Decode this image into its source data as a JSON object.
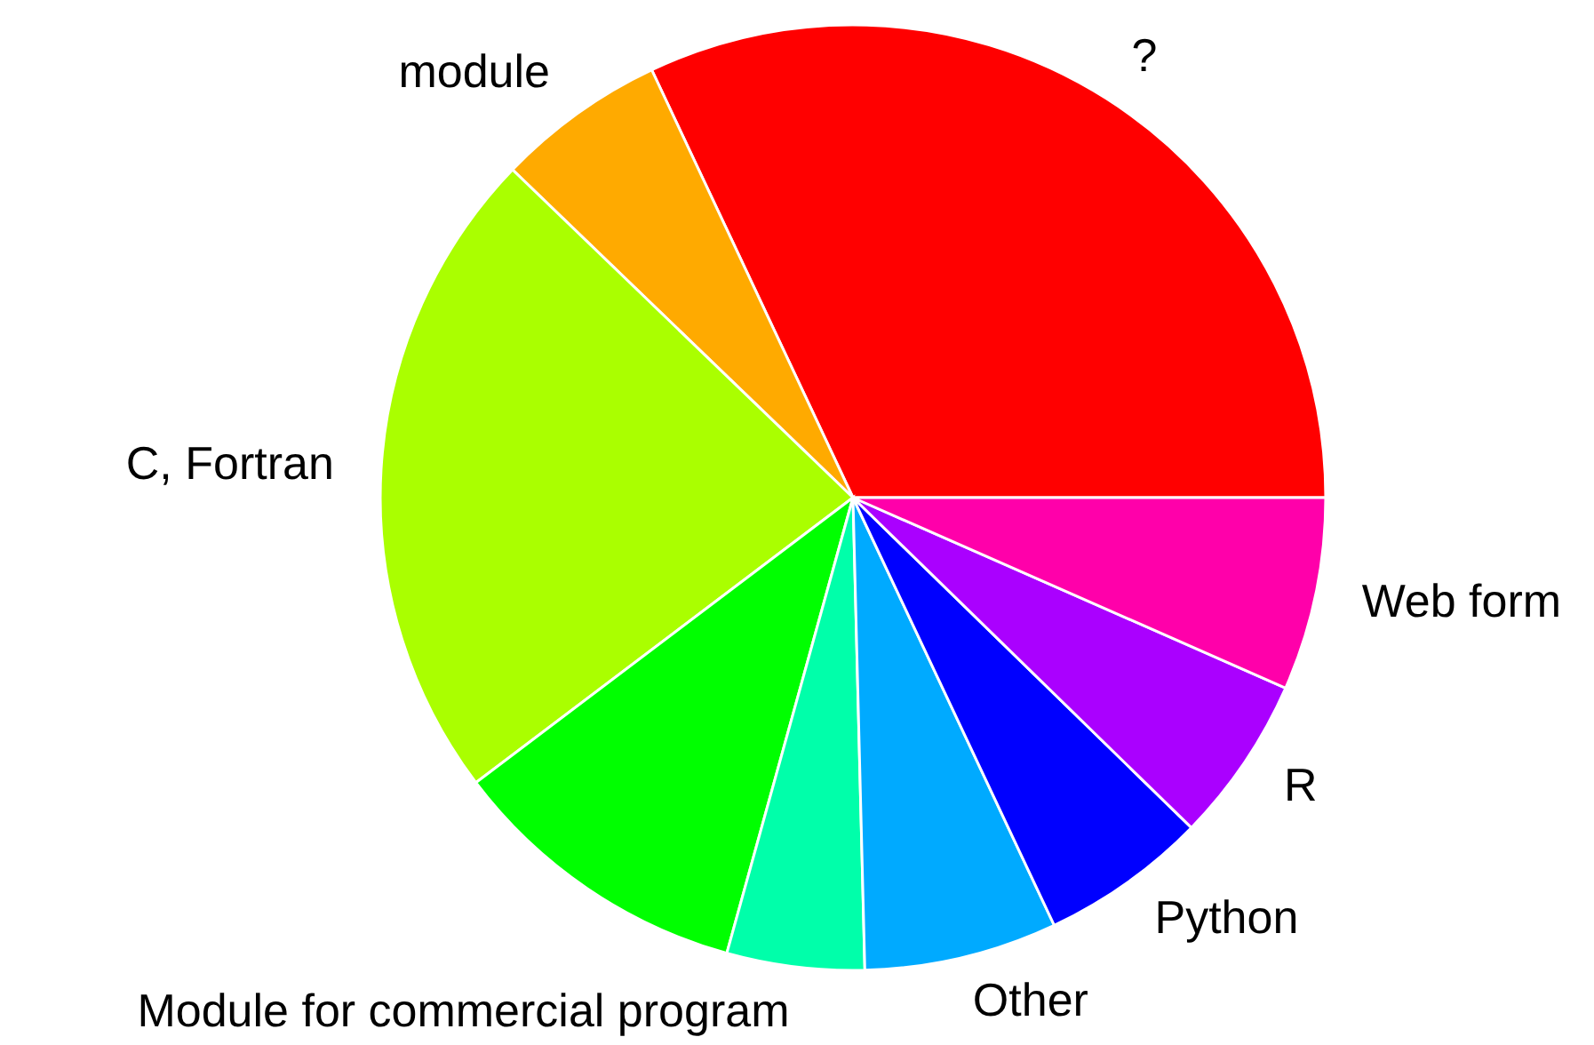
{
  "chart_data": {
    "type": "pie",
    "categories": [
      "?",
      "module",
      "C, Fortran",
      null,
      "Module for commercial program",
      "Other",
      "Python",
      "R",
      "Web form"
    ],
    "values": [
      32.0,
      5.8,
      22.5,
      10.4,
      4.7,
      6.6,
      5.7,
      5.7,
      6.6
    ],
    "colors": [
      "#ff0000",
      "#ffaa00",
      "#aaff00",
      "#00ff00",
      "#00ffaa",
      "#00aaff",
      "#0000ff",
      "#aa00ff",
      "#ff00aa"
    ]
  }
}
